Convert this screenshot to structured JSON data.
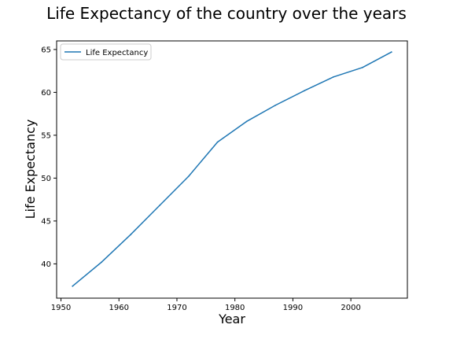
{
  "chart_data": {
    "type": "line",
    "title": "Life Expectancy of the country over the years",
    "xlabel": "Year",
    "ylabel": "Life Expectancy",
    "xlim": [
      1949.25,
      2009.75
    ],
    "ylim": [
      36.0,
      66.0
    ],
    "xticks": [
      1950,
      1960,
      1970,
      1980,
      1990,
      2000
    ],
    "yticks": [
      40,
      45,
      50,
      55,
      60,
      65
    ],
    "grid": false,
    "legend_position": "top-left",
    "series": [
      {
        "name": "Life Expectancy",
        "color": "#1f77b4",
        "x": [
          1952,
          1957,
          1962,
          1967,
          1972,
          1977,
          1982,
          1987,
          1992,
          1997,
          2002,
          2007
        ],
        "y": [
          37.4,
          40.2,
          43.4,
          46.8,
          50.2,
          54.2,
          56.6,
          58.5,
          60.2,
          61.8,
          62.9,
          64.7
        ]
      }
    ]
  }
}
